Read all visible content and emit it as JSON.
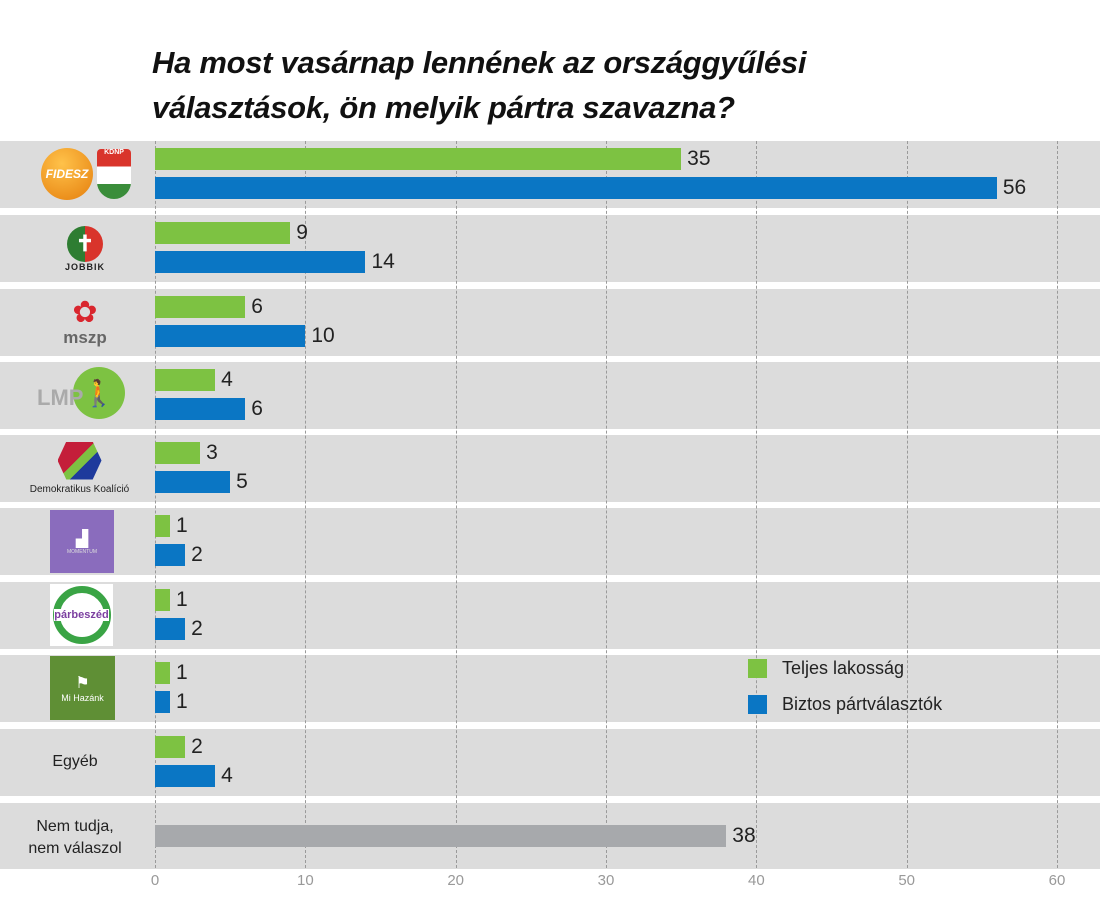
{
  "chart_data": {
    "type": "bar",
    "orientation": "horizontal",
    "title": "Ha most vasárnap lennének az országgyűlési választások, ön melyik pártra szavazna?",
    "categories": [
      "Fidesz-KDNP",
      "Jobbik",
      "MSZP",
      "LMP",
      "Demokratikus Koalíció",
      "Momentum",
      "Párbeszéd",
      "Mi Hazánk",
      "Egyéb",
      "Nem tudja, nem válaszol"
    ],
    "series": [
      {
        "name": "Teljes lakosság",
        "color": "#7dc242",
        "values": [
          35,
          9,
          6,
          4,
          3,
          1,
          1,
          1,
          2,
          null
        ]
      },
      {
        "name": "Biztos pártválasztók",
        "color": "#0a76c4",
        "values": [
          56,
          14,
          10,
          6,
          5,
          2,
          2,
          1,
          4,
          null
        ]
      },
      {
        "name": "Nem tudja, nem válaszol",
        "color": "#a7a9ac",
        "values": [
          null,
          null,
          null,
          null,
          null,
          null,
          null,
          null,
          null,
          38
        ]
      }
    ],
    "xlim": [
      0,
      60
    ],
    "xticks": [
      "0",
      "10",
      "20",
      "30",
      "40",
      "50",
      "60"
    ],
    "grid": true,
    "legend_position": "right"
  },
  "logos": {
    "fidesz": "FIDESZ",
    "kdnp": "KDNP",
    "jobbik": "JOBBIK",
    "mszp": "mszp",
    "lmp": "LMP",
    "dk": "Demokratikus Koalíció",
    "momentum": "MOMENTUM",
    "parbeszed": "párbeszéd",
    "mihazank": "Mi Hazánk"
  },
  "labels": {
    "egyeb": "Egyéb",
    "nemtudja1": "Nem tudja,",
    "nemtudja2": "nem válaszol"
  }
}
